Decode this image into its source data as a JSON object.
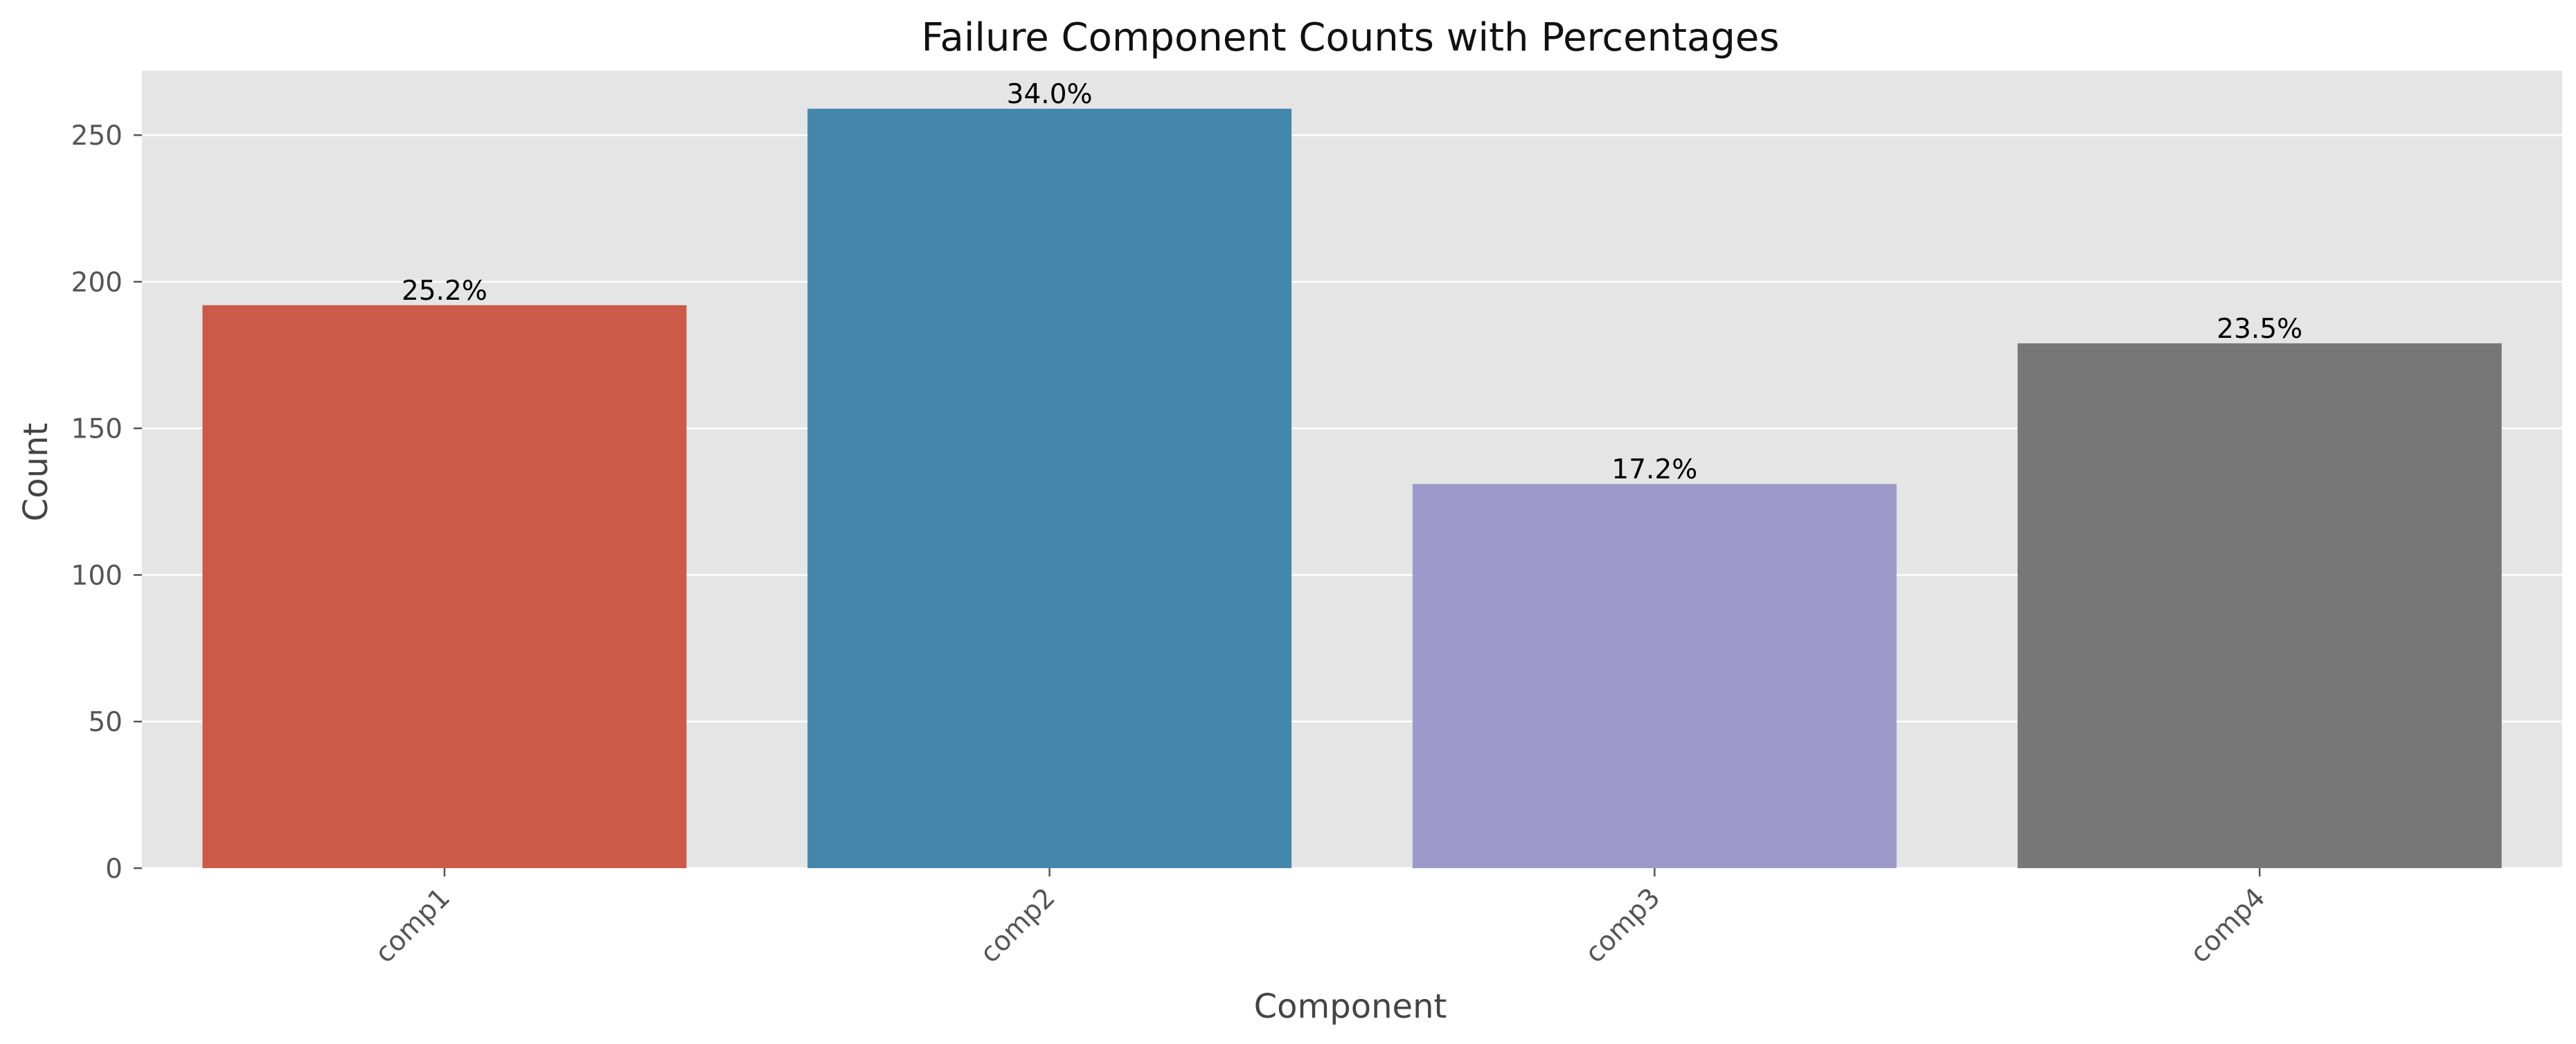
{
  "chart_data": {
    "type": "bar",
    "title": "Failure Component Counts with Percentages",
    "xlabel": "Component",
    "ylabel": "Count",
    "categories": [
      "comp1",
      "comp2",
      "comp3",
      "comp4"
    ],
    "values": [
      192,
      259,
      131,
      179
    ],
    "percent_labels": [
      "25.2%",
      "34.0%",
      "17.2%",
      "23.5%"
    ],
    "colors": [
      "#CC5A48",
      "#4587AC",
      "#9E98CA",
      "#777777"
    ],
    "ylim": [
      0,
      272
    ],
    "yticks": [
      0,
      50,
      100,
      150,
      200,
      250
    ],
    "grid": true,
    "background": "#E5E5E5",
    "x_tick_rotation": 45
  }
}
